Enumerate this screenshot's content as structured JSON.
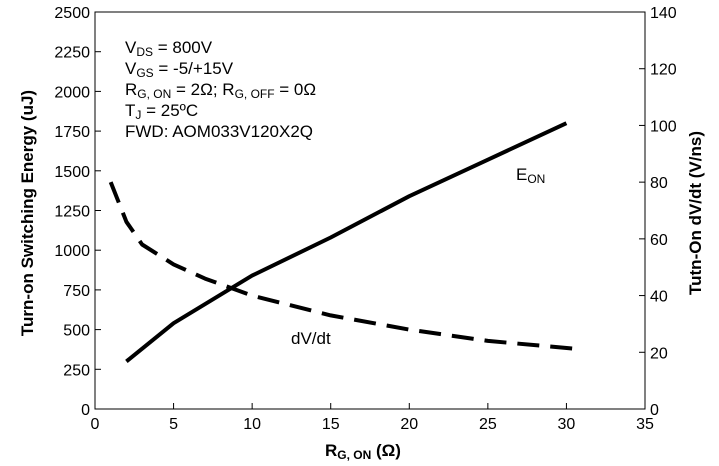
{
  "chart_data": {
    "type": "line",
    "x_axis": {
      "label_main": "R",
      "label_sub": "G, ON",
      "label_unit": " (Ω)",
      "range": [
        0,
        35
      ],
      "ticks": [
        0,
        5,
        10,
        15,
        20,
        25,
        30,
        35
      ]
    },
    "y_axis_left": {
      "label": "Turn-on Switching Energy  (uJ)",
      "range": [
        0,
        2500
      ],
      "ticks": [
        0,
        250,
        500,
        750,
        1000,
        1250,
        1500,
        1750,
        2000,
        2250,
        2500
      ]
    },
    "y_axis_right": {
      "label": "Tutn-On dV/dt  (V/ns)",
      "range": [
        0,
        140
      ],
      "ticks": [
        0,
        20,
        40,
        60,
        80,
        100,
        120,
        140
      ]
    },
    "grid": false,
    "series": [
      {
        "name_main": "E",
        "name_sub": "ON",
        "axis": "left",
        "style": "solid",
        "color": "#000000",
        "points": [
          [
            2,
            300
          ],
          [
            5,
            540
          ],
          [
            10,
            840
          ],
          [
            15,
            1080
          ],
          [
            20,
            1340
          ],
          [
            25,
            1570
          ],
          [
            30,
            1800
          ]
        ]
      },
      {
        "name_main": "dV/dt",
        "name_sub": "",
        "axis": "right",
        "style": "dashed",
        "color": "#000000",
        "points": [
          [
            1,
            80
          ],
          [
            2,
            66
          ],
          [
            3,
            58
          ],
          [
            5,
            51
          ],
          [
            7,
            46
          ],
          [
            10,
            40
          ],
          [
            15,
            33
          ],
          [
            20,
            28
          ],
          [
            25,
            24
          ],
          [
            31,
            21
          ]
        ]
      }
    ],
    "conditions": [
      {
        "main": "V",
        "sub": "DS",
        "rest": " = 800V"
      },
      {
        "main": "V",
        "sub": "GS",
        "rest": " = -5/+15V"
      },
      {
        "main": "R",
        "sub": "G, ON",
        "rest": "  = 2Ω; R",
        "sub2": "G, OFF",
        "rest2": " = 0Ω"
      },
      {
        "main": "T",
        "sub": "J",
        "rest": " = 25ºC"
      },
      {
        "main": "FWD: AOM033V120X2Q",
        "sub": "",
        "rest": ""
      }
    ]
  }
}
